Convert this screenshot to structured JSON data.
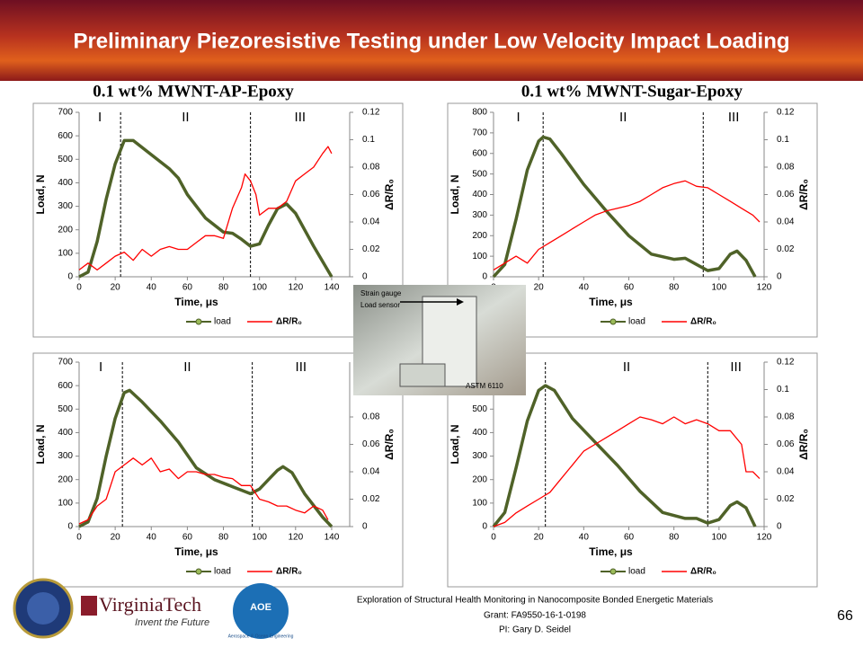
{
  "header": {
    "title": "Preliminary Piezoresistive Testing under Low Velocity Impact Loading"
  },
  "columns": [
    "0.1 wt% MWNT-AP-Epoxy",
    "0.1 wt% MWNT-Sugar-Epoxy"
  ],
  "chart_data": [
    {
      "type": "line",
      "x_label": "Time, μs",
      "y_label": "Load, N",
      "y2_label": "ΔR/R₀",
      "xlim": [
        0,
        150
      ],
      "xticks": [
        0,
        20,
        40,
        60,
        80,
        100,
        120,
        140
      ],
      "ylim": [
        0,
        700
      ],
      "yticks": [
        0,
        100,
        200,
        300,
        400,
        500,
        600,
        700
      ],
      "y2lim": [
        0,
        0.12
      ],
      "y2ticks": [
        0,
        0.02,
        0.04,
        0.06,
        0.08,
        0.1,
        0.12
      ],
      "regions": {
        "dividers": [
          23,
          95
        ],
        "labels": [
          "I",
          "II",
          "III"
        ]
      },
      "series": [
        {
          "name": "load",
          "color": "#4f6228",
          "x": [
            0,
            5,
            10,
            15,
            20,
            25,
            30,
            40,
            50,
            55,
            60,
            70,
            80,
            85,
            90,
            95,
            100,
            105,
            110,
            115,
            120,
            130,
            140
          ],
          "values": [
            0,
            20,
            150,
            330,
            480,
            580,
            580,
            520,
            460,
            420,
            350,
            250,
            190,
            185,
            160,
            130,
            140,
            220,
            290,
            310,
            270,
            130,
            0
          ]
        },
        {
          "name": "ΔR/R₀",
          "color": "#ff0000",
          "axis": "y2",
          "x": [
            0,
            5,
            10,
            15,
            20,
            25,
            30,
            35,
            40,
            45,
            50,
            55,
            60,
            65,
            70,
            75,
            80,
            85,
            90,
            92,
            95,
            98,
            100,
            105,
            110,
            115,
            120,
            125,
            130,
            135,
            138,
            140
          ],
          "values": [
            0.005,
            0.01,
            0.005,
            0.01,
            0.015,
            0.018,
            0.012,
            0.02,
            0.015,
            0.02,
            0.022,
            0.02,
            0.02,
            0.025,
            0.03,
            0.03,
            0.028,
            0.05,
            0.065,
            0.075,
            0.07,
            0.06,
            0.045,
            0.05,
            0.05,
            0.055,
            0.07,
            0.075,
            0.08,
            0.09,
            0.095,
            0.09
          ]
        }
      ]
    },
    {
      "type": "line",
      "x_label": "Time, μs",
      "y_label": "Load, N",
      "y2_label": "ΔR/R₀",
      "xlim": [
        0,
        120
      ],
      "xticks": [
        0,
        20,
        40,
        60,
        80,
        100,
        120
      ],
      "ylim": [
        0,
        800
      ],
      "yticks": [
        0,
        100,
        200,
        300,
        400,
        500,
        600,
        700,
        800
      ],
      "y2lim": [
        0,
        0.12
      ],
      "y2ticks": [
        0,
        0.02,
        0.04,
        0.06,
        0.08,
        0.1,
        0.12
      ],
      "regions": {
        "dividers": [
          22,
          93
        ],
        "labels": [
          "I",
          "II",
          "III"
        ]
      },
      "series": [
        {
          "name": "load",
          "color": "#4f6228",
          "x": [
            0,
            5,
            10,
            15,
            20,
            22,
            25,
            30,
            40,
            50,
            60,
            70,
            80,
            85,
            90,
            95,
            100,
            105,
            108,
            112,
            116
          ],
          "values": [
            0,
            60,
            280,
            520,
            660,
            680,
            670,
            600,
            450,
            320,
            200,
            110,
            85,
            90,
            60,
            30,
            40,
            110,
            125,
            80,
            0
          ]
        },
        {
          "name": "ΔR/R₀",
          "color": "#ff0000",
          "axis": "y2",
          "x": [
            0,
            5,
            10,
            15,
            20,
            25,
            30,
            35,
            40,
            45,
            50,
            55,
            60,
            65,
            70,
            75,
            80,
            85,
            90,
            95,
            100,
            105,
            110,
            115,
            118
          ],
          "values": [
            0.005,
            0.01,
            0.015,
            0.01,
            0.02,
            0.025,
            0.03,
            0.035,
            0.04,
            0.045,
            0.048,
            0.05,
            0.052,
            0.055,
            0.06,
            0.065,
            0.068,
            0.07,
            0.066,
            0.065,
            0.06,
            0.055,
            0.05,
            0.045,
            0.04
          ]
        }
      ]
    },
    {
      "type": "line",
      "x_label": "Time, μs",
      "y_label": "Load, N",
      "y2_label": "ΔR/R₀",
      "xlim": [
        0,
        150
      ],
      "xticks": [
        0,
        20,
        40,
        60,
        80,
        100,
        120,
        140
      ],
      "ylim": [
        0,
        700
      ],
      "yticks": [
        0,
        100,
        200,
        300,
        400,
        500,
        600,
        700
      ],
      "y2lim": [
        0,
        0.12
      ],
      "y2ticks": [
        0,
        0.02,
        0.04,
        0.06,
        0.08
      ],
      "regions": {
        "dividers": [
          24,
          96
        ],
        "labels": [
          "I",
          "II",
          "III"
        ]
      },
      "series": [
        {
          "name": "load",
          "color": "#4f6228",
          "x": [
            0,
            5,
            10,
            15,
            20,
            25,
            28,
            35,
            45,
            55,
            65,
            75,
            85,
            95,
            100,
            105,
            110,
            113,
            118,
            125,
            135,
            140
          ],
          "values": [
            0,
            20,
            120,
            300,
            460,
            570,
            580,
            530,
            450,
            360,
            250,
            200,
            170,
            140,
            160,
            200,
            240,
            255,
            230,
            140,
            40,
            0
          ]
        },
        {
          "name": "ΔR/R₀",
          "color": "#ff0000",
          "axis": "y2",
          "x": [
            0,
            5,
            10,
            15,
            20,
            25,
            30,
            35,
            40,
            45,
            50,
            55,
            60,
            65,
            70,
            75,
            80,
            85,
            90,
            95,
            100,
            105,
            110,
            115,
            120,
            125,
            130,
            135,
            138
          ],
          "values": [
            0.002,
            0.005,
            0.015,
            0.02,
            0.04,
            0.045,
            0.05,
            0.045,
            0.05,
            0.04,
            0.042,
            0.035,
            0.04,
            0.04,
            0.038,
            0.038,
            0.036,
            0.035,
            0.03,
            0.03,
            0.02,
            0.018,
            0.015,
            0.015,
            0.012,
            0.01,
            0.015,
            0.012,
            0.005
          ]
        }
      ]
    },
    {
      "type": "line",
      "x_label": "Time, μs",
      "y_label": "Load, N",
      "y2_label": "ΔR/R₀",
      "xlim": [
        0,
        120
      ],
      "xticks": [
        0,
        20,
        40,
        60,
        80,
        100,
        120
      ],
      "ylim": [
        0,
        700
      ],
      "yticks": [
        0,
        100,
        200,
        300,
        400,
        500
      ],
      "y2lim": [
        0,
        0.12
      ],
      "y2ticks": [
        0,
        0.02,
        0.04,
        0.06,
        0.08,
        0.1,
        0.12
      ],
      "regions": {
        "dividers": [
          23,
          95
        ],
        "labels": [
          "II",
          "III"
        ]
      },
      "series": [
        {
          "name": "load",
          "color": "#4f6228",
          "x": [
            0,
            5,
            10,
            15,
            20,
            23,
            27,
            35,
            45,
            55,
            65,
            75,
            85,
            90,
            95,
            100,
            105,
            108,
            112,
            116
          ],
          "values": [
            0,
            60,
            250,
            450,
            580,
            600,
            580,
            460,
            360,
            260,
            150,
            60,
            35,
            35,
            15,
            30,
            90,
            105,
            80,
            0
          ]
        },
        {
          "name": "ΔR/R₀",
          "color": "#ff0000",
          "axis": "y2",
          "x": [
            0,
            5,
            10,
            15,
            20,
            25,
            30,
            35,
            40,
            45,
            50,
            55,
            60,
            65,
            70,
            75,
            80,
            85,
            90,
            95,
            100,
            105,
            110,
            112,
            115,
            118
          ],
          "values": [
            0,
            0.003,
            0.01,
            0.015,
            0.02,
            0.025,
            0.035,
            0.045,
            0.055,
            0.06,
            0.065,
            0.07,
            0.075,
            0.08,
            0.078,
            0.075,
            0.08,
            0.075,
            0.078,
            0.075,
            0.07,
            0.07,
            0.06,
            0.04,
            0.04,
            0.035
          ]
        }
      ]
    }
  ],
  "photo": {
    "labels": [
      "Strain gauge",
      "Load sensor",
      "ASTM 6110"
    ]
  },
  "footer": {
    "university": "VirginiaTech",
    "motto": "Invent the Future",
    "dept_abbr": "AOE",
    "dept": "Aerospace & Ocean Engineering",
    "lines": [
      "Exploration of Structural Health Monitoring in Nanocomposite Bonded Energetic Materials",
      "Grant: FA9550-16-1-0198",
      "PI: Gary D. Seidel"
    ],
    "page": "66"
  }
}
